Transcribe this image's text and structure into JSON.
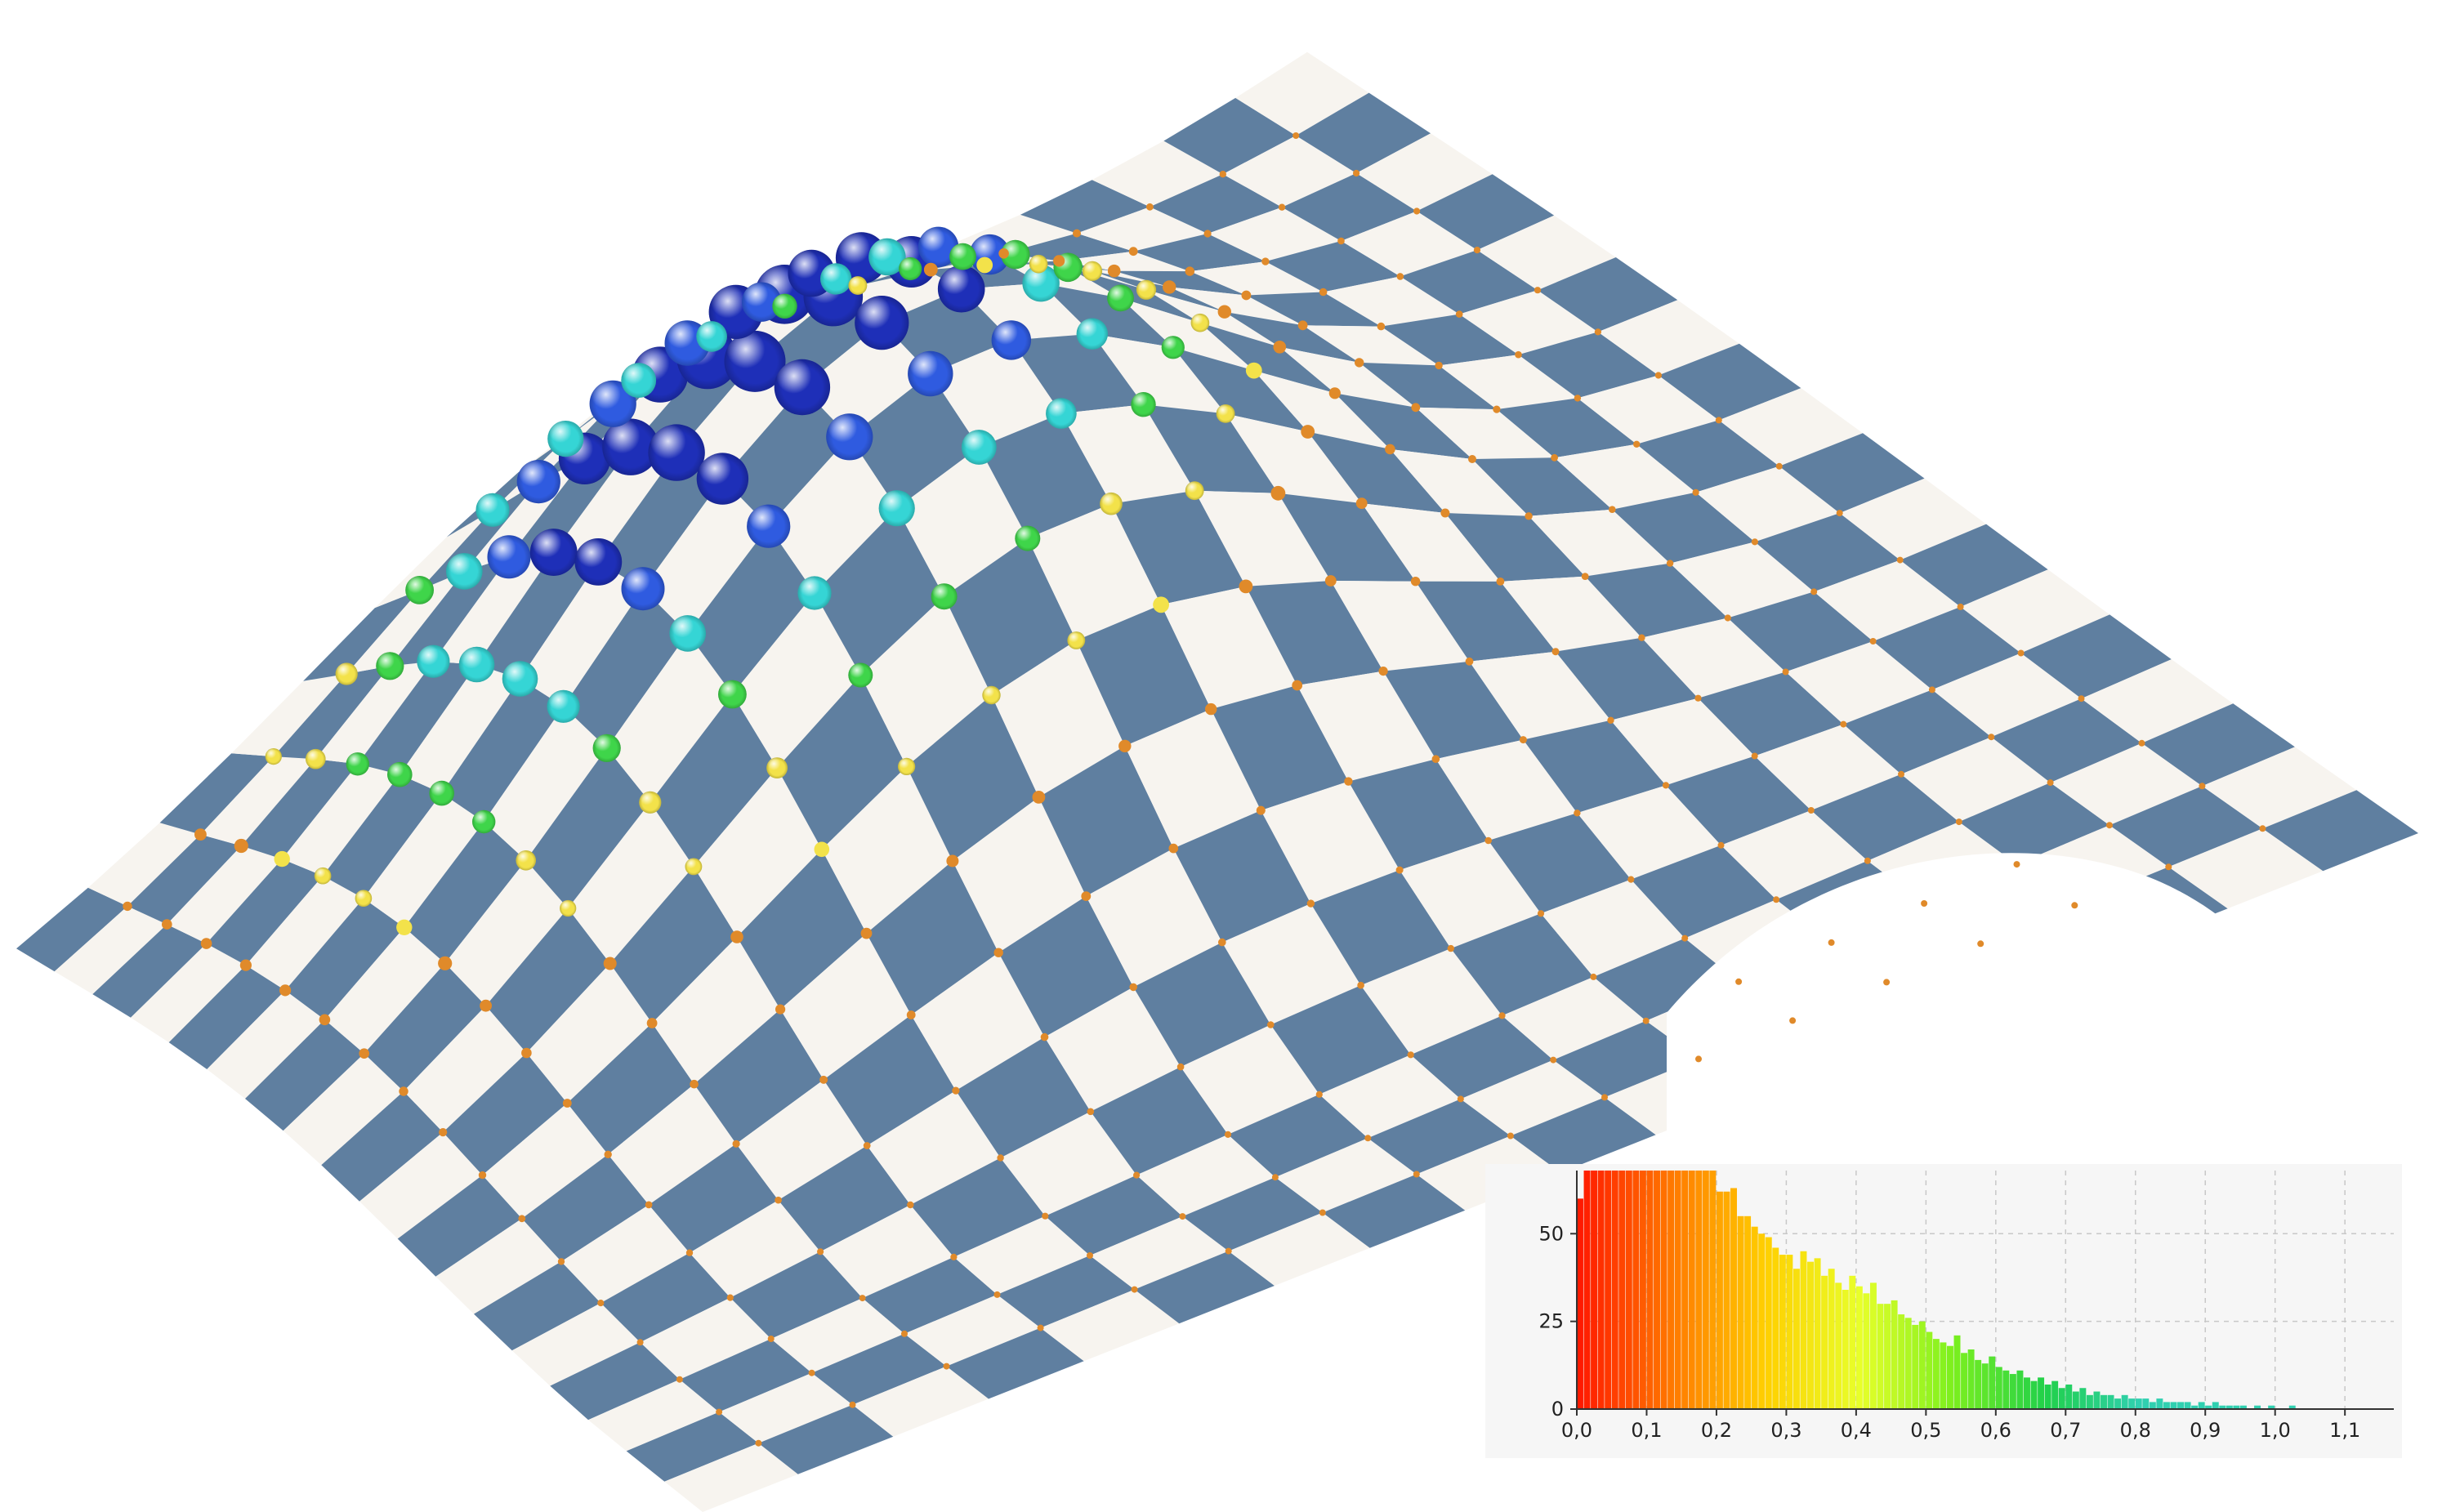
{
  "surface": {
    "colors": {
      "dark": "#5f7fa0",
      "light": "#f7f4ef"
    },
    "sphere_color_scale": [
      "#e08a2a",
      "#f3e24a",
      "#3fd54a",
      "#35d5d5",
      "#2f5be0",
      "#1e2fb8"
    ]
  },
  "chart_data": {
    "type": "bar",
    "title": "",
    "xlabel": "",
    "ylabel": "",
    "xlim": [
      0,
      1.17
    ],
    "ylim": [
      0,
      68
    ],
    "grid": true,
    "x_ticks": [
      "0,0",
      "0,1",
      "0,2",
      "0,3",
      "0,4",
      "0,5",
      "0,6",
      "0,7",
      "0,8",
      "0,9",
      "1,0",
      "1,1"
    ],
    "y_ticks": [
      "0",
      "25",
      "50"
    ],
    "bin_width": 0.01,
    "values": [
      60,
      68,
      68,
      68,
      68,
      68,
      68,
      68,
      68,
      68,
      68,
      68,
      68,
      68,
      68,
      68,
      68,
      68,
      68,
      68,
      62,
      62,
      63,
      55,
      55,
      52,
      50,
      49,
      46,
      44,
      44,
      40,
      45,
      42,
      43,
      38,
      40,
      36,
      34,
      38,
      35,
      33,
      36,
      30,
      30,
      31,
      27,
      26,
      24,
      25,
      22,
      20,
      19,
      18,
      21,
      16,
      17,
      14,
      13,
      15,
      12,
      11,
      10,
      11,
      9,
      8,
      9,
      7,
      8,
      6,
      7,
      5,
      6,
      4,
      5,
      4,
      4,
      3,
      4,
      3,
      3,
      3,
      2,
      3,
      2,
      2,
      2,
      2,
      1,
      2,
      1,
      2,
      1,
      1,
      1,
      1,
      0,
      1,
      0,
      1,
      0,
      0,
      1,
      0,
      0,
      0,
      0,
      0,
      0,
      0,
      0,
      0,
      0,
      0,
      0,
      0
    ],
    "color_scale": [
      "#ff1a00",
      "#ff7a00",
      "#ffd000",
      "#e8ff2a",
      "#7cf01e",
      "#20d04a",
      "#30d0b0"
    ]
  }
}
